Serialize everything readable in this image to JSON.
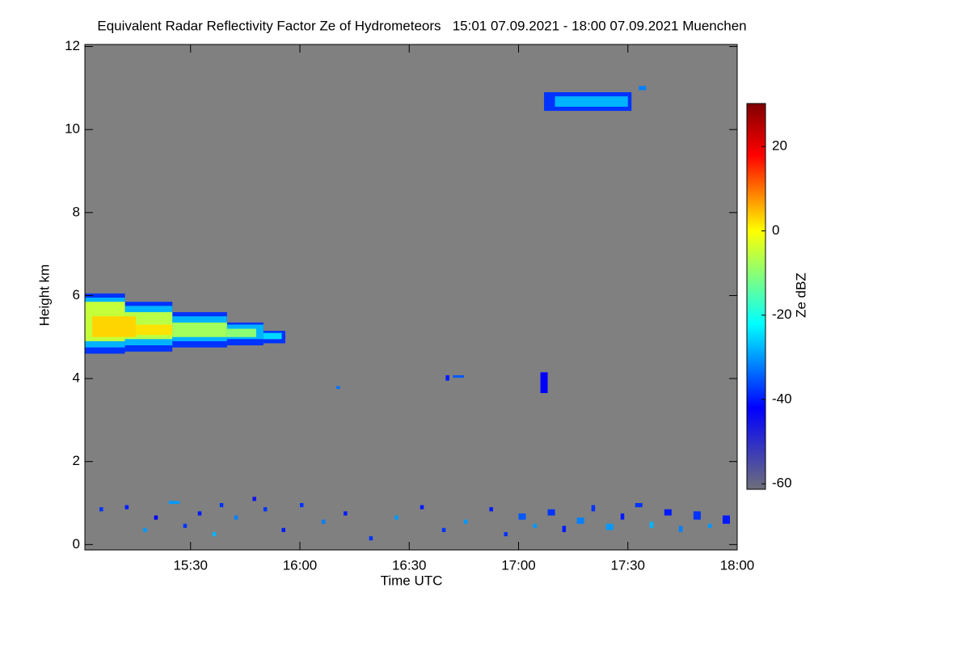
{
  "chart_data": {
    "type": "heatmap",
    "title": "Equivalent Radar Reflectivity Factor Ze of Hydrometeors   15:01 07.09.2021 - 18:00 07.09.2021 Muenchen",
    "xlabel": "Time UTC",
    "ylabel": "Height km",
    "colorbar_label": "Ze dBZ",
    "xlim": [
      901,
      1080
    ],
    "xticks": [
      {
        "value": 930,
        "label": "15:30"
      },
      {
        "value": 960,
        "label": "16:00"
      },
      {
        "value": 990,
        "label": "16:30"
      },
      {
        "value": 1020,
        "label": "17:00"
      },
      {
        "value": 1050,
        "label": "17:30"
      },
      {
        "value": 1080,
        "label": "18:00"
      }
    ],
    "ylim": [
      -0.13,
      12.05
    ],
    "yticks": [
      0,
      2,
      4,
      6,
      8,
      10,
      12
    ],
    "zlim": [
      -61.3,
      30.2
    ],
    "zticks": [
      20,
      0,
      -20,
      -40,
      -60
    ],
    "background": "#808080",
    "colormap": [
      {
        "value": -61.3,
        "color": "#6e6e7a"
      },
      {
        "value": -42,
        "color": "#0000ff"
      },
      {
        "value": -22,
        "color": "#00ffff"
      },
      {
        "value": 0,
        "color": "#ffff00"
      },
      {
        "value": 18,
        "color": "#ff0000"
      },
      {
        "value": 30.2,
        "color": "#800000"
      }
    ],
    "cells": [
      [
        901,
        912,
        4.6,
        6.05,
        -38
      ],
      [
        912,
        925,
        4.65,
        5.85,
        -38
      ],
      [
        925,
        940,
        4.75,
        5.6,
        -38
      ],
      [
        940,
        950,
        4.8,
        5.35,
        -38
      ],
      [
        950,
        956,
        4.85,
        5.15,
        -38
      ],
      [
        901,
        912,
        4.75,
        5.95,
        -28
      ],
      [
        912,
        925,
        4.8,
        5.75,
        -28
      ],
      [
        925,
        940,
        4.9,
        5.5,
        -28
      ],
      [
        940,
        950,
        4.95,
        5.3,
        -28
      ],
      [
        950,
        955,
        4.95,
        5.1,
        -25
      ],
      [
        901,
        912,
        4.9,
        5.85,
        -5
      ],
      [
        912,
        925,
        4.95,
        5.6,
        -6
      ],
      [
        925,
        940,
        5.0,
        5.35,
        -8
      ],
      [
        940,
        948,
        5.0,
        5.2,
        -10
      ],
      [
        903,
        915,
        5.0,
        5.5,
        3
      ],
      [
        915,
        925,
        5.05,
        5.3,
        2
      ],
      [
        1027,
        1051,
        10.45,
        10.9,
        -38
      ],
      [
        1030,
        1050,
        10.55,
        10.8,
        -28
      ],
      [
        1053,
        1055,
        10.95,
        11.05,
        -32
      ],
      [
        970,
        971,
        3.75,
        3.82,
        -33
      ],
      [
        1000,
        1001,
        3.95,
        4.08,
        -40
      ],
      [
        1002,
        1005,
        4.02,
        4.08,
        -35
      ],
      [
        1026,
        1028,
        3.65,
        4.15,
        -42
      ],
      [
        905,
        906,
        0.8,
        0.9,
        -38
      ],
      [
        912,
        913,
        0.85,
        0.95,
        -40
      ],
      [
        917,
        918,
        0.3,
        0.4,
        -30
      ],
      [
        920,
        921,
        0.6,
        0.7,
        -42
      ],
      [
        924,
        927,
        0.98,
        1.05,
        -30
      ],
      [
        928,
        929,
        0.4,
        0.5,
        -38
      ],
      [
        932,
        933,
        0.7,
        0.8,
        -40
      ],
      [
        936,
        937,
        0.2,
        0.3,
        -28
      ],
      [
        938,
        939,
        0.9,
        1.0,
        -38
      ],
      [
        942,
        943,
        0.6,
        0.7,
        -32
      ],
      [
        947,
        948,
        1.05,
        1.15,
        -45
      ],
      [
        950,
        951,
        0.8,
        0.9,
        -38
      ],
      [
        955,
        956,
        0.3,
        0.4,
        -40
      ],
      [
        960,
        961,
        0.9,
        1.0,
        -38
      ],
      [
        966,
        967,
        0.5,
        0.6,
        -32
      ],
      [
        972,
        973,
        0.7,
        0.8,
        -40
      ],
      [
        979,
        980,
        0.1,
        0.2,
        -38
      ],
      [
        986,
        987,
        0.6,
        0.7,
        -30
      ],
      [
        993,
        994,
        0.85,
        0.95,
        -40
      ],
      [
        999,
        1000,
        0.3,
        0.4,
        -38
      ],
      [
        1005,
        1006,
        0.5,
        0.6,
        -30
      ],
      [
        1012,
        1013,
        0.8,
        0.9,
        -40
      ],
      [
        1016,
        1017,
        0.2,
        0.3,
        -38
      ],
      [
        1020,
        1022,
        0.6,
        0.75,
        -35
      ],
      [
        1024,
        1025,
        0.4,
        0.5,
        -30
      ],
      [
        1028,
        1030,
        0.7,
        0.85,
        -38
      ],
      [
        1032,
        1033,
        0.3,
        0.45,
        -40
      ],
      [
        1036,
        1038,
        0.5,
        0.65,
        -32
      ],
      [
        1040,
        1041,
        0.8,
        0.95,
        -38
      ],
      [
        1044,
        1046,
        0.35,
        0.5,
        -30
      ],
      [
        1048,
        1049,
        0.6,
        0.75,
        -40
      ],
      [
        1052,
        1054,
        0.9,
        1.0,
        -38
      ],
      [
        1056,
        1057,
        0.4,
        0.55,
        -28
      ],
      [
        1060,
        1062,
        0.7,
        0.85,
        -40
      ],
      [
        1064,
        1065,
        0.3,
        0.45,
        -32
      ],
      [
        1068,
        1070,
        0.6,
        0.8,
        -38
      ],
      [
        1072,
        1073,
        0.4,
        0.5,
        -30
      ],
      [
        1076,
        1078,
        0.5,
        0.7,
        -40
      ]
    ]
  }
}
